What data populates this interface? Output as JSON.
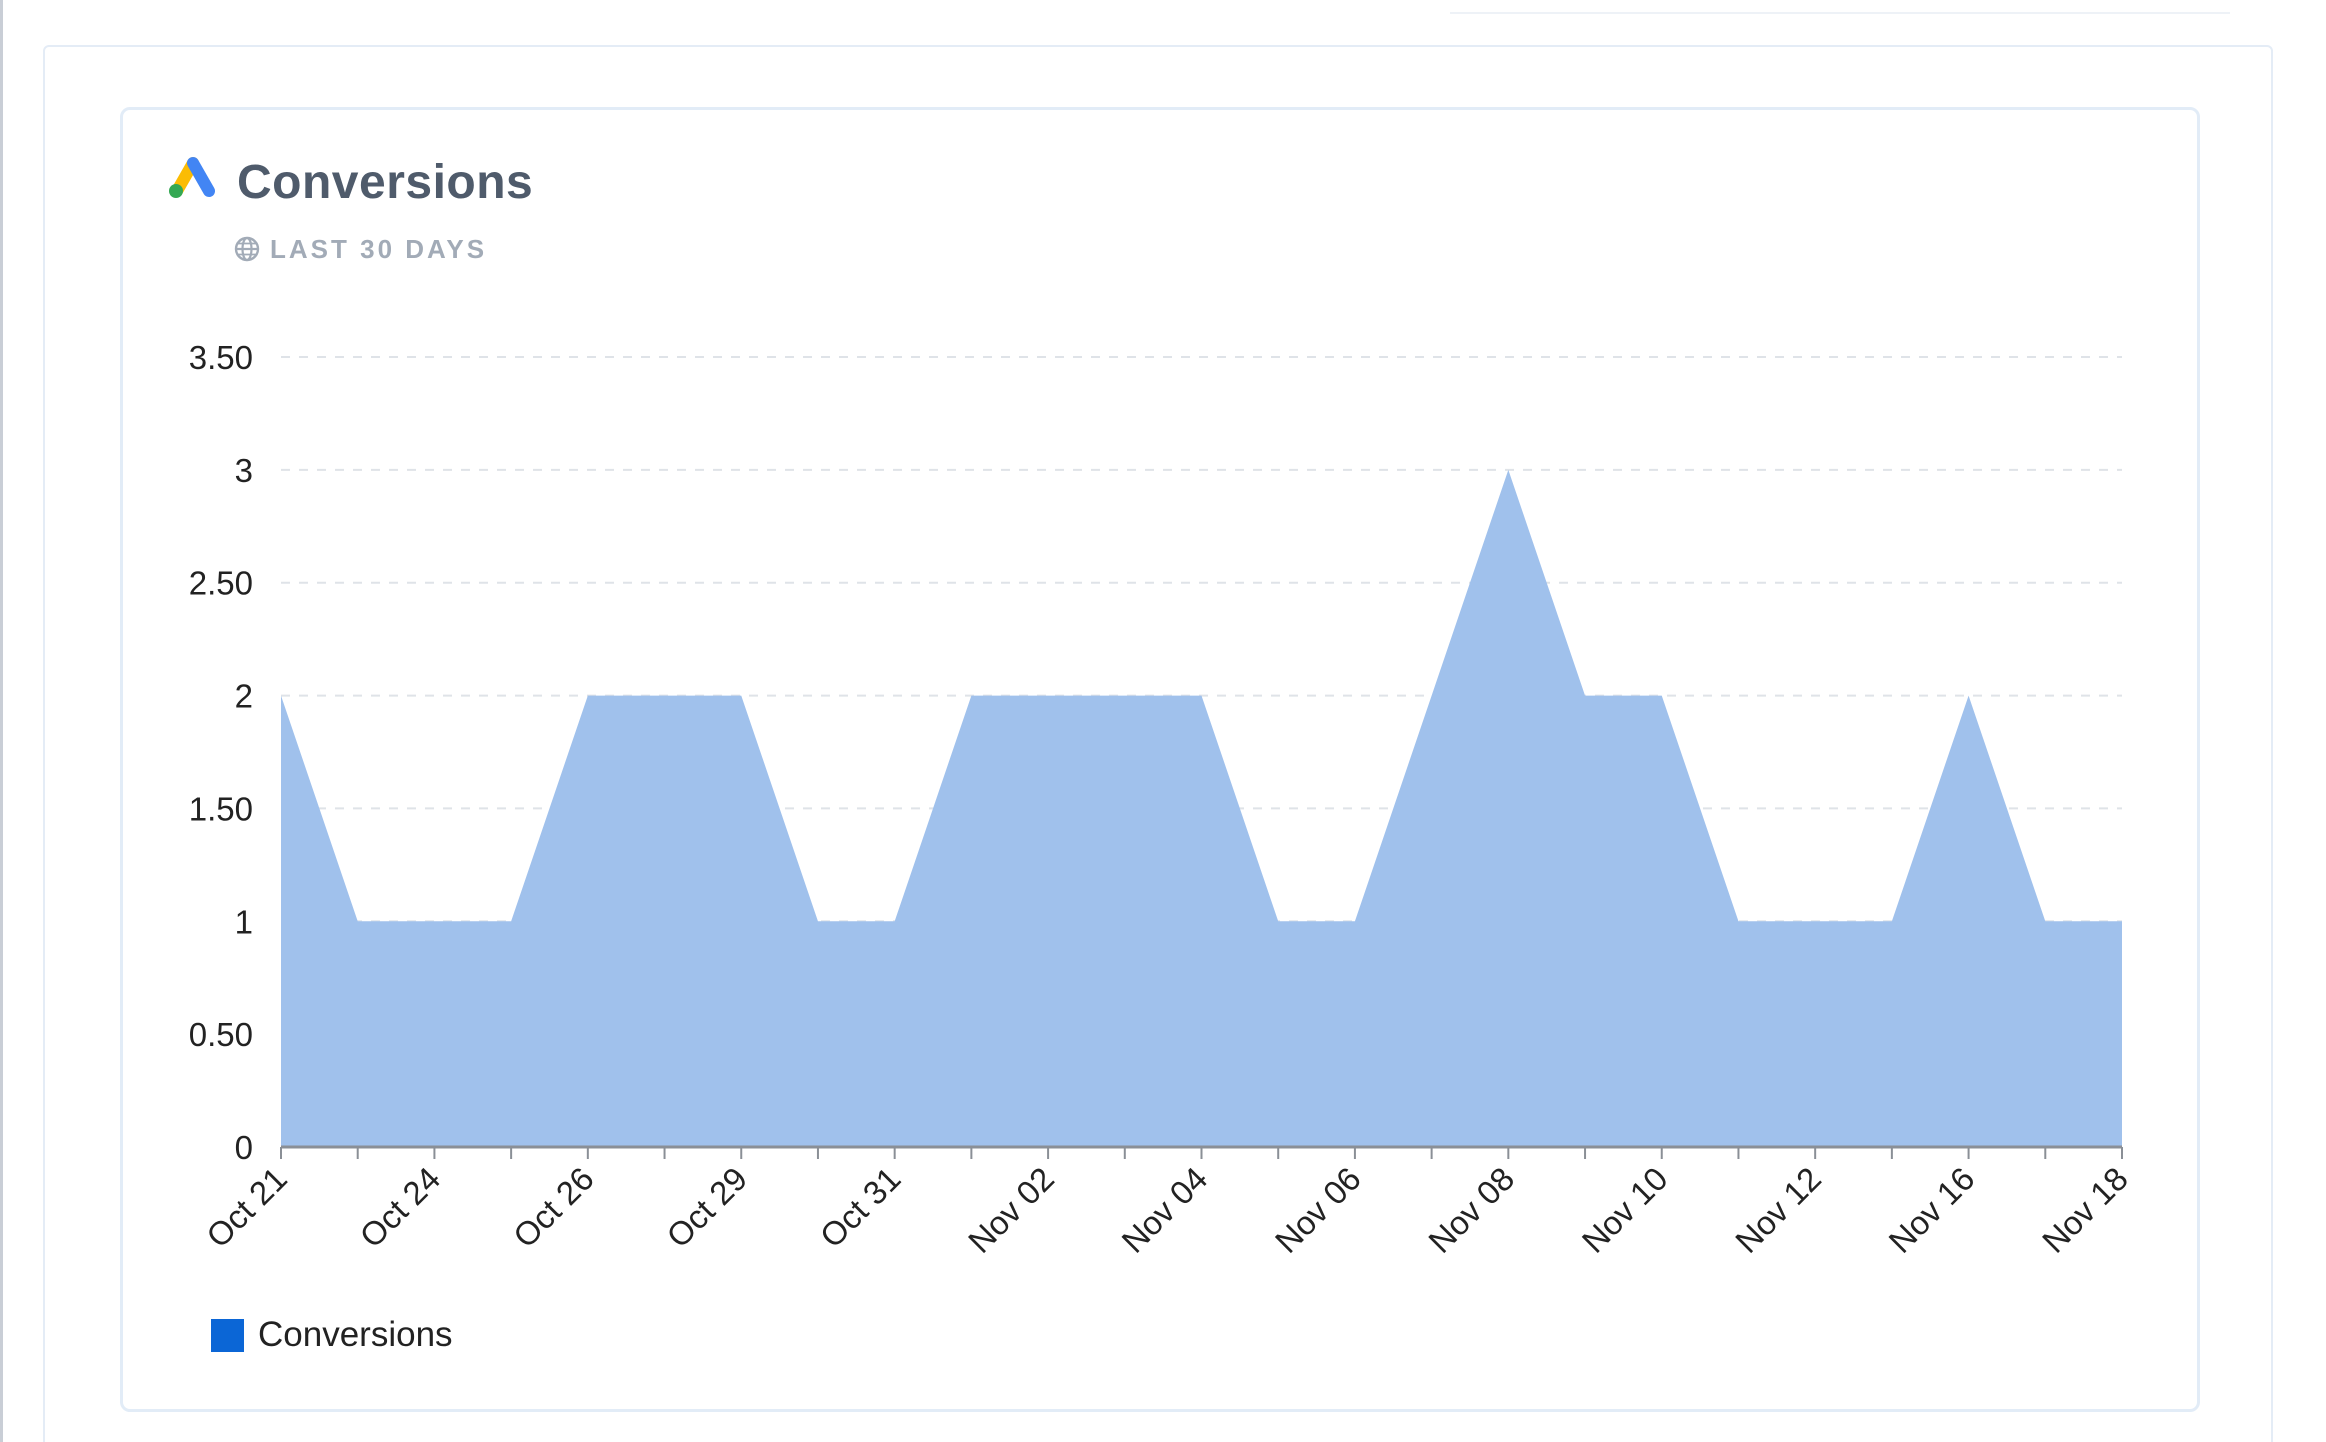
{
  "card": {
    "title": "Conversions",
    "subtitle": "LAST 30 DAYS",
    "logo_icon": "google-ads-logo",
    "subtitle_icon": "globe-icon"
  },
  "colors": {
    "area_fill": "#a0c1ec",
    "legend_swatch": "#0b66d6",
    "grid": "#dfe3e8",
    "axis": "#8a8f96",
    "title": "#4f5b6b",
    "subtitle": "#a2abb7",
    "logo_blue": "#4285f4",
    "logo_yellow": "#fbbc04",
    "logo_green": "#34a853"
  },
  "chart_data": {
    "type": "area",
    "title": "Conversions",
    "subtitle": "LAST 30 DAYS",
    "xlabel": "",
    "ylabel": "",
    "ylim": [
      0,
      3.5
    ],
    "y_ticks": [
      "0",
      "0.50",
      "1",
      "1.50",
      "2",
      "2.50",
      "3",
      "3.50"
    ],
    "y_tick_values": [
      0,
      0.5,
      1,
      1.5,
      2,
      2.5,
      3,
      3.5
    ],
    "x_tick_labels": [
      "Oct 21",
      "",
      "Oct 24",
      "",
      "Oct 26",
      "",
      "Oct 29",
      "",
      "Oct 31",
      "",
      "Nov 02",
      "",
      "Nov 04",
      "",
      "Nov 06",
      "",
      "Nov 08",
      "",
      "Nov 10",
      "",
      "Nov 12",
      "",
      "Nov 16",
      "",
      "Nov 18"
    ],
    "grid": true,
    "legend_position": "bottom-left",
    "series": [
      {
        "name": "Conversions",
        "values": [
          2,
          1,
          1,
          1,
          2,
          2,
          2,
          1,
          1,
          2,
          2,
          2,
          2,
          1,
          1,
          2,
          3,
          2,
          2,
          1,
          1,
          1,
          2,
          1,
          1
        ]
      }
    ]
  }
}
